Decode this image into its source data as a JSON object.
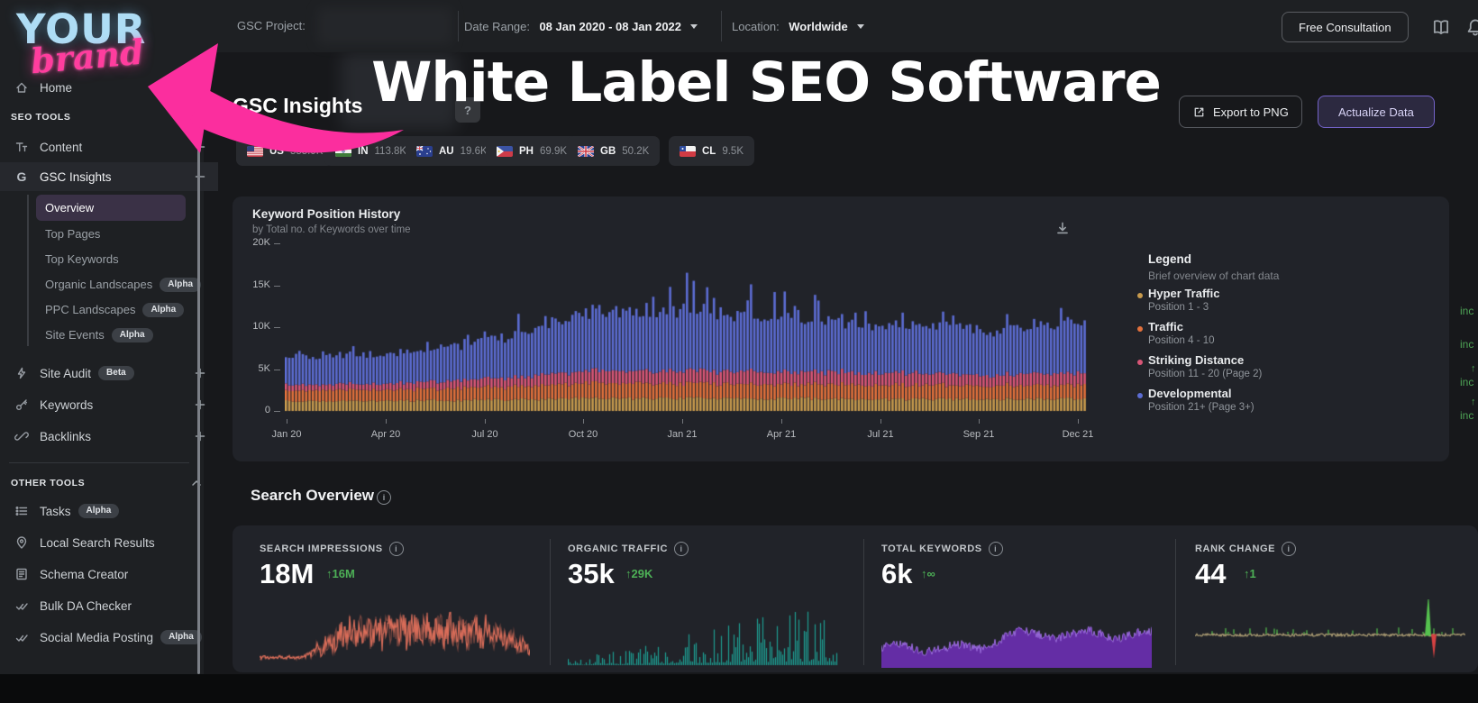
{
  "overlay": {
    "headline": "White Label SEO Software"
  },
  "brand": {
    "word_top": "YOUR",
    "word_script": "brand"
  },
  "header": {
    "project_label": "GSC Project:",
    "date_range_label": "Date Range:",
    "date_range_value": "08 Jan 2020 - 08 Jan 2022",
    "location_label": "Location:",
    "location_value": "Worldwide",
    "free_consultation": "Free Consultation"
  },
  "sidebar": {
    "home": "Home",
    "seo_tools_header": "SEO TOOLS",
    "content": "Content",
    "gsc_insights": "GSC Insights",
    "gsc_sub": [
      {
        "label": "Overview"
      },
      {
        "label": "Top Pages"
      },
      {
        "label": "Top Keywords"
      },
      {
        "label": "Organic Landscapes",
        "badge": "Alpha"
      },
      {
        "label": "PPC Landscapes",
        "badge": "Alpha"
      },
      {
        "label": "Site Events",
        "badge": "Alpha"
      }
    ],
    "site_audit": "Site Audit",
    "site_audit_badge": "Beta",
    "keywords": "Keywords",
    "backlinks": "Backlinks",
    "other_tools_header": "OTHER TOOLS",
    "tasks": "Tasks",
    "tasks_badge": "Alpha",
    "local_search_results": "Local Search Results",
    "schema_creator": "Schema Creator",
    "bulk_da_checker": "Bulk DA Checker",
    "social_media_posting": "Social Media Posting",
    "social_badge": "Alpha"
  },
  "page": {
    "title": "GSC Insights",
    "help_glyph": "?",
    "info_glyph": "i",
    "export_button": "Export to PNG",
    "actualize_button": "Actualize Data"
  },
  "country_chips": [
    {
      "code": "US",
      "value": "555.9K"
    },
    {
      "code": "IN",
      "value": "113.8K"
    },
    {
      "code": "AU",
      "value": "19.6K"
    },
    {
      "code": "PH",
      "value": "69.9K"
    },
    {
      "code": "GB",
      "value": "50.2K"
    },
    {
      "code": "CL",
      "value": "9.5K"
    }
  ],
  "legend": {
    "title": "Legend",
    "subtitle": "Brief overview of chart data",
    "items": [
      {
        "name": "Hyper Traffic",
        "range": "Position 1 - 3",
        "color": "#c79a4d",
        "delta_text": "inc"
      },
      {
        "name": "Traffic",
        "range": "Position 4 - 10",
        "color": "#e2713c",
        "delta_text": "inc"
      },
      {
        "name": "Striking Distance",
        "range": "Position 11 - 20 (Page 2)",
        "color": "#d85677",
        "delta_arrow": "↑",
        "delta_text": "inc"
      },
      {
        "name": "Developmental",
        "range": "Position 21+ (Page 3+)",
        "color": "#5c6cd2",
        "delta_arrow": "↑",
        "delta_text": "inc"
      }
    ]
  },
  "search_overview": {
    "title": "Search Overview",
    "cards": [
      {
        "label": "SEARCH IMPRESSIONS",
        "value": "18M",
        "delta": "↑16M"
      },
      {
        "label": "ORGANIC TRAFFIC",
        "value": "35k",
        "delta": "↑29K"
      },
      {
        "label": "TOTAL KEYWORDS",
        "value": "6k",
        "delta": "↑∞"
      },
      {
        "label": "RANK CHANGE",
        "value": "44",
        "delta": "↑1"
      }
    ]
  },
  "chart_data": [
    {
      "id": "keyword-position-history",
      "type": "bar",
      "stacked": true,
      "title": "Keyword Position History",
      "subtitle": "by Total no. of Keywords over time",
      "x_ticks": [
        "Jan 20",
        "Apr 20",
        "Jul 20",
        "Oct 20",
        "Jan 21",
        "Apr 21",
        "Jul 21",
        "Sep 21",
        "Dec 21"
      ],
      "y_ticks": [
        "0",
        "5K",
        "10K",
        "15K",
        "20K"
      ],
      "ylim": [
        0,
        20000
      ],
      "grid": false,
      "legend_position": "right",
      "series": [
        {
          "name": "Hyper Traffic",
          "color": "#c79a4d",
          "values_at_ticks": [
            1200,
            1200,
            1300,
            1500,
            1500,
            1500,
            1400,
            1400,
            1500
          ]
        },
        {
          "name": "Traffic",
          "color": "#e2713c",
          "values_at_ticks": [
            1300,
            1300,
            1500,
            1800,
            1800,
            1700,
            1700,
            1600,
            1700
          ]
        },
        {
          "name": "Striking Distance",
          "color": "#d85677",
          "values_at_ticks": [
            700,
            700,
            1000,
            1400,
            1500,
            1500,
            1400,
            1300,
            1400
          ]
        },
        {
          "name": "Developmental",
          "color": "#5c6cd2",
          "values_at_ticks": [
            3300,
            3100,
            4300,
            6200,
            6600,
            5800,
            5300,
            4900,
            5600
          ]
        }
      ],
      "spike_amplitude_at_ticks": [
        900,
        1000,
        1900,
        4300,
        4700,
        3300,
        3000,
        2600,
        2800
      ]
    },
    {
      "id": "spark-search-impressions",
      "type": "line",
      "color": "#e0705c",
      "shape": "flat-then-noisy-hump"
    },
    {
      "id": "spark-organic-traffic",
      "type": "bar",
      "color": "#1ea89a",
      "shape": "dense-spikes-rising"
    },
    {
      "id": "spark-total-keywords",
      "type": "area",
      "color": "#6b2fb3",
      "top_color": "#9b6bdf",
      "shape": "noisy-plateau-step-up"
    },
    {
      "id": "spark-rank-change",
      "type": "line",
      "color": "#b3a377",
      "spike_up_color": "#55c14e",
      "spike_down_color": "#d64242",
      "shape": "flat-with-end-spike"
    }
  ]
}
